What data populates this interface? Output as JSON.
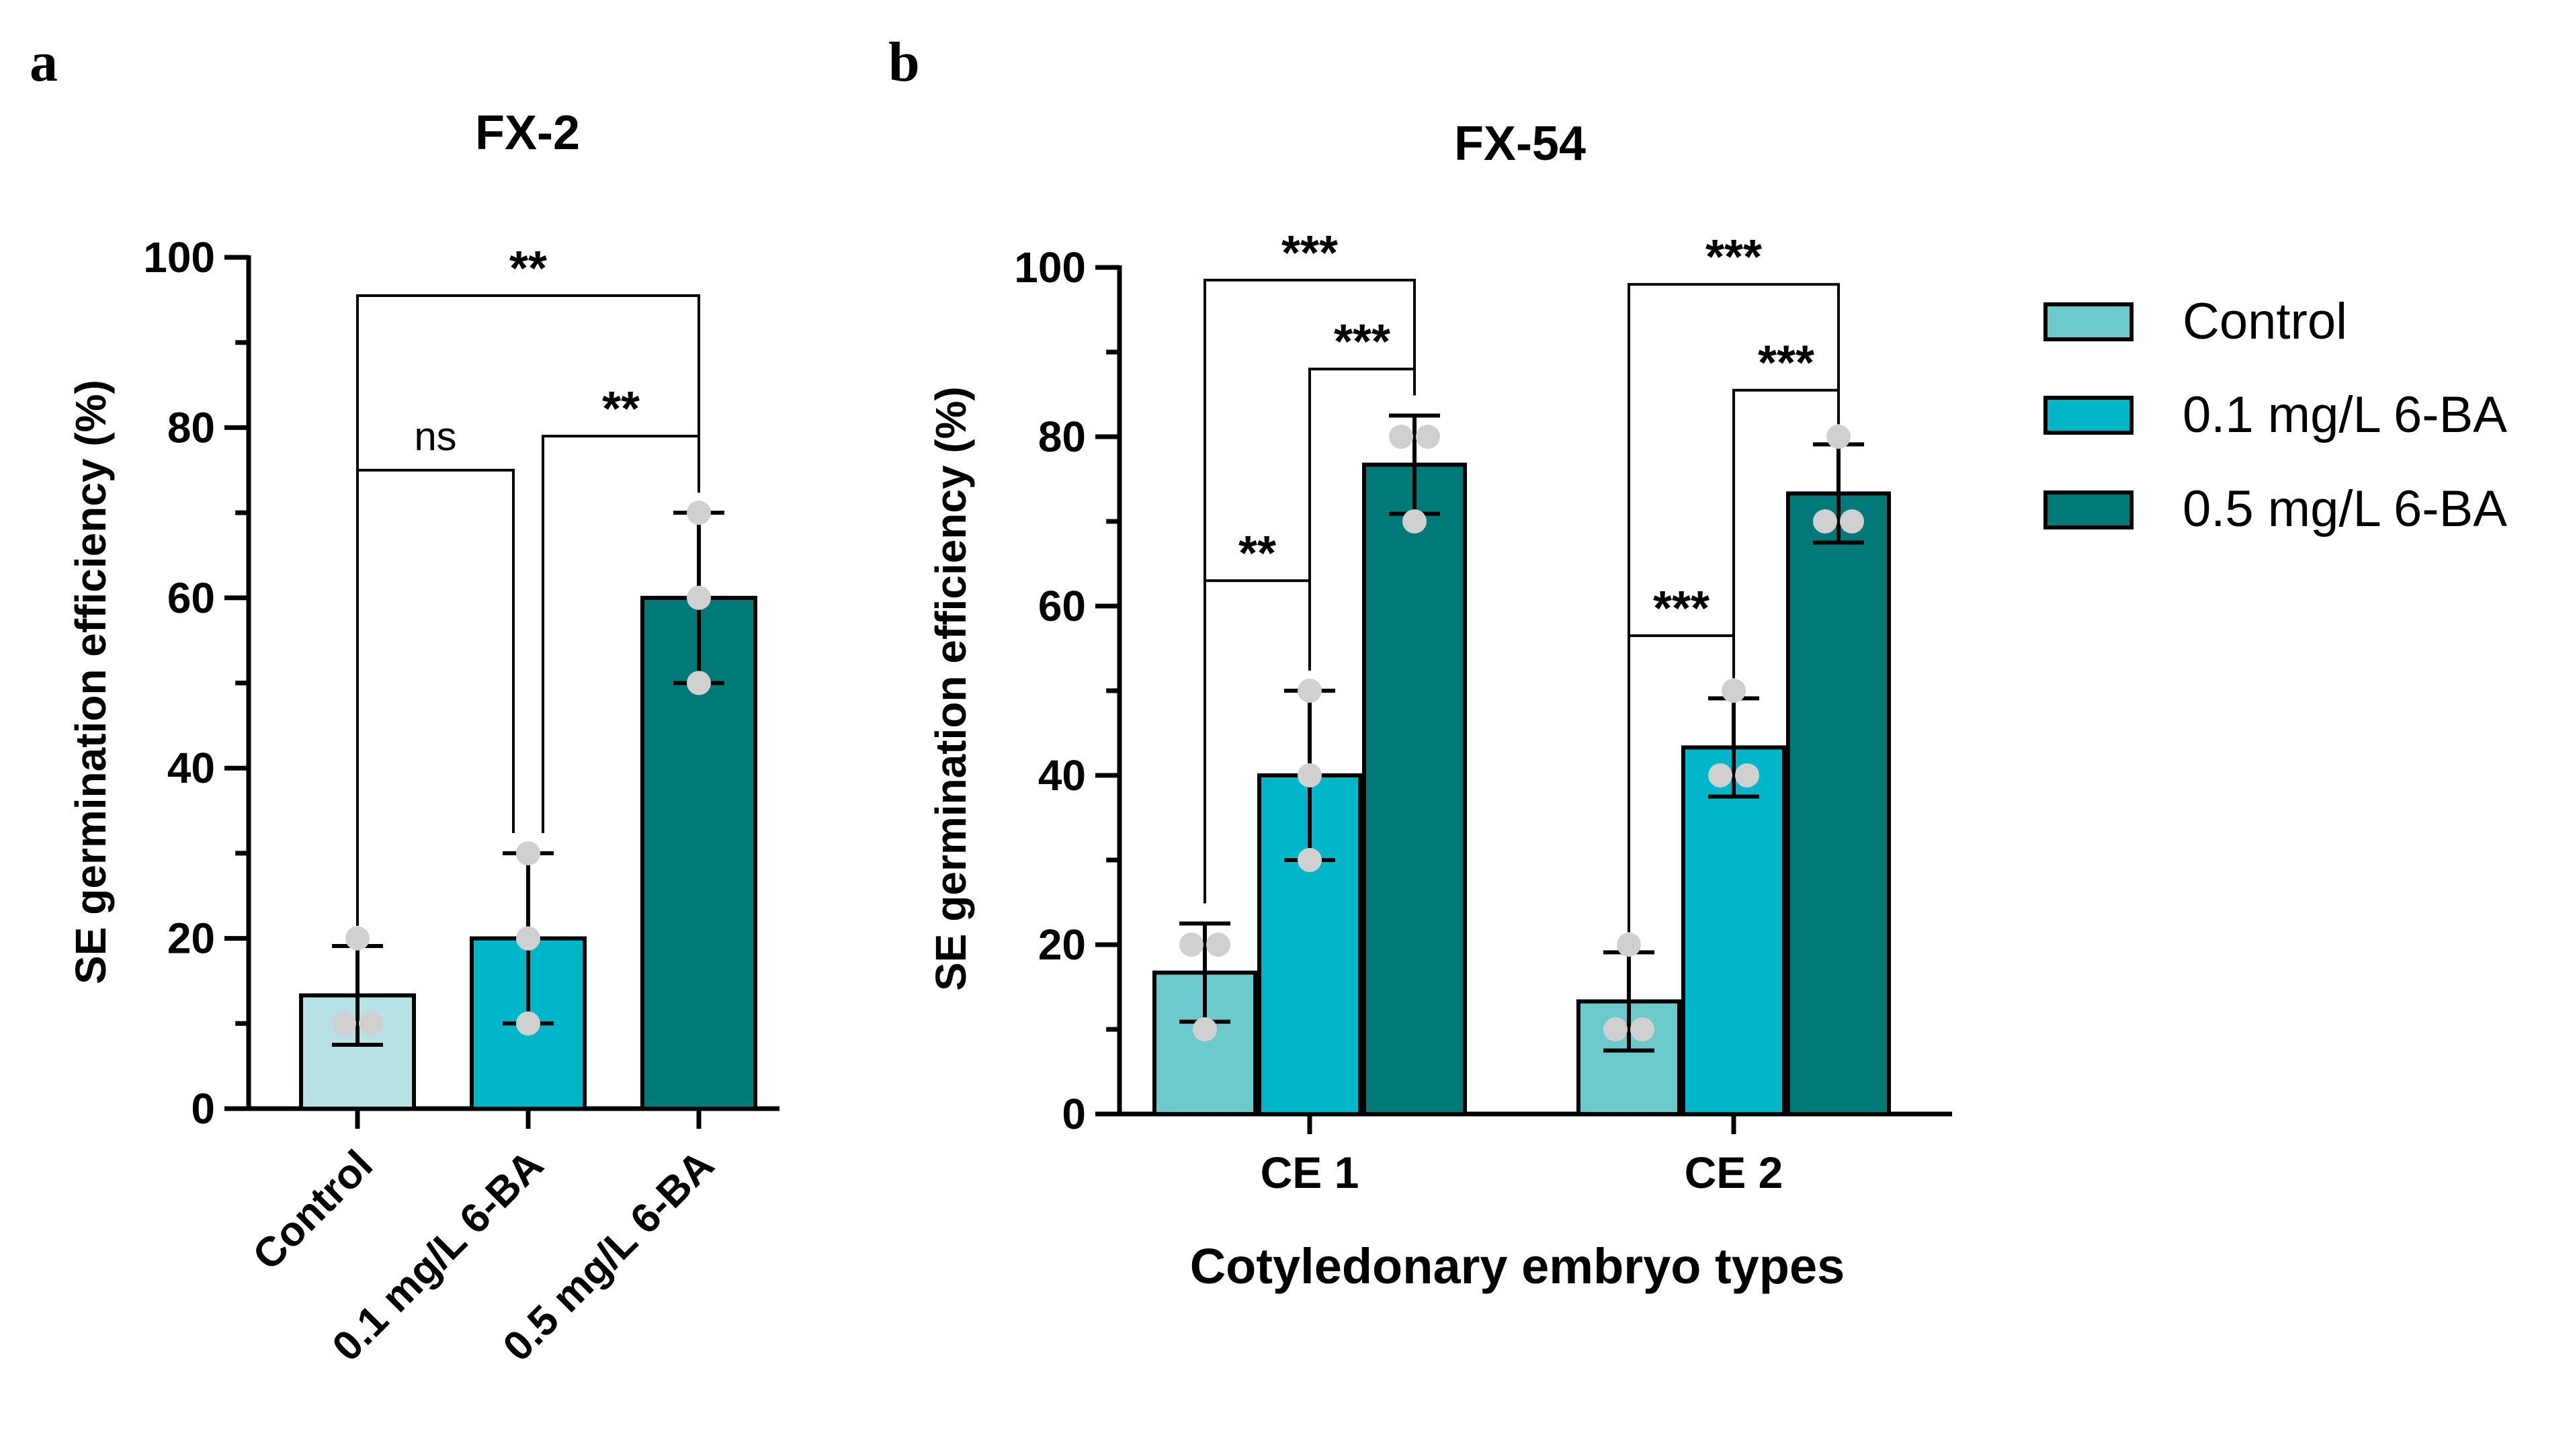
{
  "panels": {
    "a_label": "a",
    "b_label": "b"
  },
  "colors": {
    "control_a": "#b6e2e6",
    "control_b": "#6ccacc",
    "low": "#00b7c9",
    "high": "#007a78",
    "point": "#d0d0d0"
  },
  "legend": {
    "items": [
      "Control",
      "0.1 mg/L 6-BA",
      "0.5 mg/L 6-BA"
    ]
  },
  "chart_data": [
    {
      "type": "bar",
      "title": "FX-2",
      "ylabel": "SE germination efficiency (%)",
      "xlabel": "",
      "ylim": [
        0,
        100
      ],
      "yticks": [
        0,
        20,
        40,
        60,
        80,
        100
      ],
      "categories": [
        "Control",
        "0.1 mg/L 6-BA",
        "0.5 mg/L 6-BA"
      ],
      "values": [
        13.3,
        20,
        60
      ],
      "errors": [
        5.8,
        10,
        10
      ],
      "points": [
        [
          20,
          10,
          10
        ],
        [
          30,
          20,
          10
        ],
        [
          70,
          60,
          50
        ]
      ],
      "significance": [
        {
          "from": 0,
          "to": 1,
          "label": "ns",
          "y": 75
        },
        {
          "from": 1,
          "to": 2,
          "label": "**",
          "y": 79
        },
        {
          "from": 0,
          "to": 2,
          "label": "**",
          "y": 95.5
        }
      ]
    },
    {
      "type": "bar",
      "title": "FX-54",
      "ylabel": "SE germination efficiency (%)",
      "xlabel": "Cotyledonary embryo types",
      "ylim": [
        0,
        100
      ],
      "yticks": [
        0,
        20,
        40,
        60,
        80,
        100
      ],
      "categories": [
        "CE 1",
        "CE 2"
      ],
      "series": [
        {
          "name": "Control",
          "values": [
            16.7,
            13.3
          ],
          "errors": [
            5.8,
            5.8
          ],
          "points": [
            [
              20,
              20,
              10
            ],
            [
              20,
              10,
              10
            ]
          ]
        },
        {
          "name": "0.1 mg/L 6-BA",
          "values": [
            40,
            43.3
          ],
          "errors": [
            10,
            5.8
          ],
          "points": [
            [
              50,
              40,
              30
            ],
            [
              50,
              40,
              40
            ]
          ]
        },
        {
          "name": "0.5 mg/L 6-BA",
          "values": [
            76.7,
            73.3
          ],
          "errors": [
            5.8,
            5.8
          ],
          "points": [
            [
              80,
              80,
              70
            ],
            [
              80,
              70,
              70
            ]
          ]
        }
      ],
      "significance": [
        {
          "category": 0,
          "from": 0,
          "to": 1,
          "label": "**",
          "y": 63
        },
        {
          "category": 0,
          "from": 1,
          "to": 2,
          "label": "***",
          "y": 88
        },
        {
          "category": 0,
          "from": 0,
          "to": 2,
          "label": "***",
          "y": 98.5
        },
        {
          "category": 1,
          "from": 0,
          "to": 1,
          "label": "***",
          "y": 56.5
        },
        {
          "category": 1,
          "from": 1,
          "to": 2,
          "label": "***",
          "y": 85.5
        },
        {
          "category": 1,
          "from": 0,
          "to": 2,
          "label": "***",
          "y": 98
        }
      ]
    }
  ]
}
